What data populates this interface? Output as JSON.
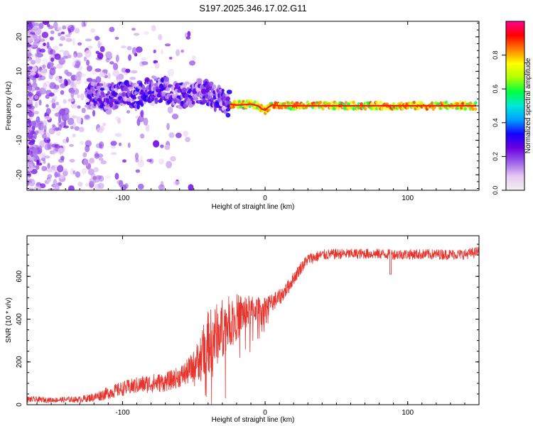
{
  "figure": {
    "title": "S197.2025.346.17.02.G11"
  },
  "chart_data": [
    {
      "type": "heatmap",
      "title": "",
      "xlabel": "Height of straight line (km)",
      "ylabel": "Frequency (Hz)",
      "xlim": [
        -167,
        150
      ],
      "ylim": [
        -24.5,
        24.5
      ],
      "xticks": [
        {
          "value": -100,
          "label": "-100"
        },
        {
          "value": 0,
          "label": "0"
        },
        {
          "value": 100,
          "label": "100"
        }
      ],
      "yticks": [
        {
          "value": -20,
          "label": "-20"
        },
        {
          "value": -10,
          "label": "-10"
        },
        {
          "value": 0,
          "label": "0"
        },
        {
          "value": 10,
          "label": "10"
        },
        {
          "value": 20,
          "label": "20"
        }
      ],
      "ridge": {
        "description": "dominant frequency ridge",
        "x": [
          -122,
          -110,
          -100,
          -90,
          -80,
          -70,
          -60,
          -50,
          -45,
          -40,
          -35,
          -30,
          -25,
          -20,
          -15,
          -10,
          -5,
          -2,
          0,
          2,
          5,
          10,
          20,
          40,
          60,
          80,
          100,
          120,
          148
        ],
        "y": [
          3,
          2.5,
          3.5,
          3,
          5,
          4.5,
          3,
          3.5,
          4,
          3.5,
          2.5,
          1.5,
          0.5,
          0.2,
          0.3,
          0.5,
          0,
          -1,
          -1.2,
          -0.5,
          0.3,
          0,
          0,
          0,
          0,
          0,
          0,
          0,
          0
        ]
      },
      "colorbar": {
        "label": "Normalized spectral amplitude",
        "range": [
          0,
          1
        ],
        "ticks": [
          {
            "value": 0,
            "label": "0.0"
          },
          {
            "value": 0.2,
            "label": "0.2"
          },
          {
            "value": 0.4,
            "label": "0.4"
          },
          {
            "value": 0.6,
            "label": "0.6"
          },
          {
            "value": 0.8,
            "label": "0.8"
          }
        ],
        "colormap": [
          "#f2f2f2",
          "#e7c8f2",
          "#9a60e8",
          "#6a00e0",
          "#1400ff",
          "#00a0ff",
          "#00e8d8",
          "#00ff40",
          "#b0ff00",
          "#ffff00",
          "#ff8000",
          "#ff0000",
          "#ff0090"
        ]
      }
    },
    {
      "type": "line",
      "title": "",
      "xlabel": "Height of straight line (km)",
      "ylabel": "SNR (10 * v/v)",
      "xlim": [
        -167,
        150
      ],
      "ylim": [
        0,
        790
      ],
      "xticks": [
        {
          "value": -100,
          "label": "-100"
        },
        {
          "value": 0,
          "label": "0"
        },
        {
          "value": 100,
          "label": "100"
        }
      ],
      "yticks": [
        {
          "value": 0,
          "label": "0"
        },
        {
          "value": 200,
          "label": "200"
        },
        {
          "value": 400,
          "label": "400"
        },
        {
          "value": 600,
          "label": "600"
        }
      ],
      "series": [
        {
          "name": "SNR",
          "color": "#e8332c",
          "x": [
            -167,
            -150,
            -130,
            -120,
            -110,
            -100,
            -90,
            -80,
            -70,
            -60,
            -55,
            -50,
            -45,
            -40,
            -35,
            -30,
            -25,
            -20,
            -15,
            -10,
            -5,
            0,
            5,
            10,
            15,
            20,
            25,
            30,
            40,
            50,
            60,
            70,
            80,
            90,
            100,
            110,
            120,
            130,
            140,
            150
          ],
          "values": [
            25,
            22,
            25,
            35,
            55,
            75,
            90,
            100,
            105,
            130,
            150,
            180,
            230,
            290,
            320,
            360,
            390,
            410,
            430,
            440,
            450,
            460,
            480,
            500,
            540,
            590,
            640,
            680,
            700,
            705,
            705,
            706,
            705,
            703,
            703,
            703,
            703,
            703,
            703,
            715
          ],
          "noise": [
            15,
            12,
            15,
            22,
            30,
            35,
            40,
            45,
            45,
            50,
            60,
            75,
            110,
            150,
            150,
            140,
            120,
            110,
            90,
            70,
            55,
            50,
            45,
            40,
            35,
            32,
            30,
            28,
            26,
            25,
            25,
            25,
            25,
            25,
            25,
            25,
            25,
            25,
            25,
            25
          ]
        }
      ],
      "annotations": [
        {
          "x": 88,
          "y": 605,
          "text": ""
        }
      ]
    }
  ]
}
